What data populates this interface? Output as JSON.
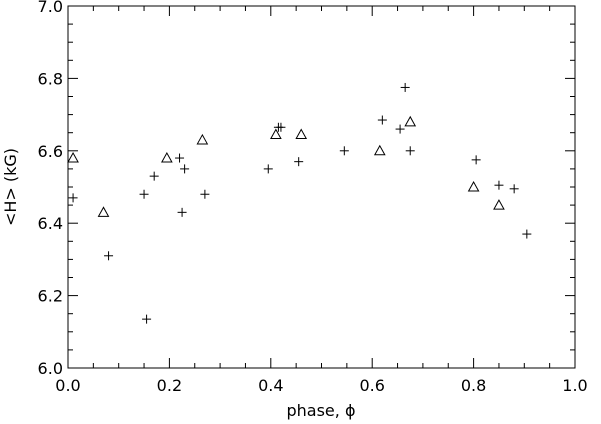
{
  "chart_data": {
    "type": "scatter",
    "title": "",
    "xlabel": "phase, ϕ",
    "ylabel": "<H> (kG)",
    "xlim": [
      0.0,
      1.0
    ],
    "ylim": [
      6.0,
      7.0
    ],
    "xticks": [
      "0.0",
      "0.2",
      "0.4",
      "0.6",
      "0.8",
      "1.0"
    ],
    "yticks": [
      "6.0",
      "6.2",
      "6.4",
      "6.6",
      "6.8",
      "7.0"
    ],
    "grid": false,
    "legend": "none",
    "series": [
      {
        "marker": "plus",
        "points": [
          [
            0.01,
            6.47
          ],
          [
            0.08,
            6.31
          ],
          [
            0.15,
            6.48
          ],
          [
            0.155,
            6.135
          ],
          [
            0.17,
            6.53
          ],
          [
            0.22,
            6.58
          ],
          [
            0.225,
            6.43
          ],
          [
            0.23,
            6.55
          ],
          [
            0.27,
            6.48
          ],
          [
            0.395,
            6.55
          ],
          [
            0.415,
            6.665
          ],
          [
            0.42,
            6.665
          ],
          [
            0.455,
            6.57
          ],
          [
            0.545,
            6.6
          ],
          [
            0.62,
            6.685
          ],
          [
            0.655,
            6.66
          ],
          [
            0.665,
            6.775
          ],
          [
            0.675,
            6.6
          ],
          [
            0.805,
            6.575
          ],
          [
            0.85,
            6.505
          ],
          [
            0.88,
            6.495
          ],
          [
            0.905,
            6.37
          ]
        ]
      },
      {
        "marker": "triangle",
        "points": [
          [
            0.01,
            6.58
          ],
          [
            0.07,
            6.43
          ],
          [
            0.195,
            6.58
          ],
          [
            0.265,
            6.63
          ],
          [
            0.41,
            6.645
          ],
          [
            0.46,
            6.645
          ],
          [
            0.615,
            6.6
          ],
          [
            0.675,
            6.68
          ],
          [
            0.8,
            6.5
          ],
          [
            0.85,
            6.45
          ]
        ]
      }
    ]
  }
}
